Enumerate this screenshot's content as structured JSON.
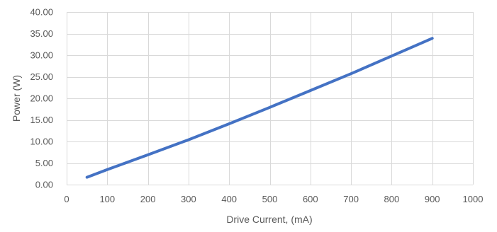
{
  "chart_data": {
    "type": "line",
    "title": "",
    "xlabel": "Drive Current, (mA)",
    "ylabel": "Power  (W)",
    "xlim": [
      0,
      1000
    ],
    "ylim": [
      0,
      40
    ],
    "x_ticks": [
      "0",
      "100",
      "200",
      "300",
      "400",
      "500",
      "600",
      "700",
      "800",
      "900",
      "1000"
    ],
    "y_ticks": [
      "0.00",
      "5.00",
      "10.00",
      "15.00",
      "20.00",
      "25.00",
      "30.00",
      "35.00",
      "40.00"
    ],
    "grid": true,
    "legend": "none",
    "series": [
      {
        "color": "#4472C4",
        "x": [
          50,
          100,
          200,
          300,
          400,
          500,
          600,
          700,
          800,
          900
        ],
        "y": [
          1.7,
          3.5,
          6.9,
          10.4,
          14.1,
          17.9,
          21.8,
          25.7,
          29.8,
          33.9
        ]
      }
    ]
  }
}
